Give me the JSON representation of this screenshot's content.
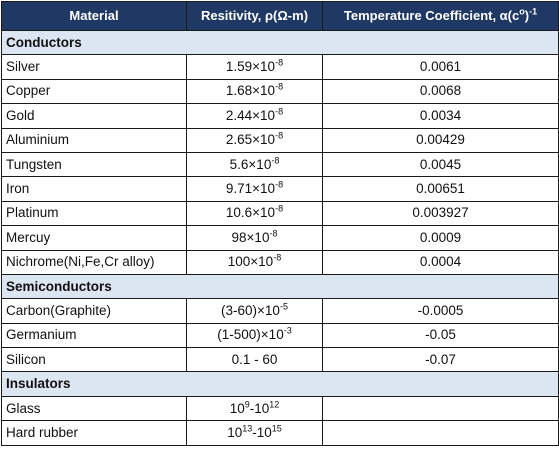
{
  "table": {
    "headers": {
      "material": "Material",
      "resistivity": "Resitivity, ρ(Ω-m)",
      "temp_coeff_base": "Temperature Coefficient, α(c",
      "temp_coeff_sup1": "o",
      "temp_coeff_mid": ")",
      "temp_coeff_sup2": "-1"
    },
    "sections": [
      {
        "title": "Conductors",
        "rows": [
          {
            "material": "Silver",
            "res_base": "1.59×10",
            "res_exp": "-8",
            "coeff": "0.0061"
          },
          {
            "material": "Copper",
            "res_base": "1.68×10",
            "res_exp": "-8",
            "coeff": "0.0068"
          },
          {
            "material": "Gold",
            "res_base": "2.44×10",
            "res_exp": "-8",
            "coeff": "0.0034"
          },
          {
            "material": "Aluminium",
            "res_base": "2.65×10",
            "res_exp": "-8",
            "coeff": "0.00429"
          },
          {
            "material": "Tungsten",
            "res_base": "5.6×10",
            "res_exp": "-8",
            "coeff": "0.0045"
          },
          {
            "material": "Iron",
            "res_base": "9.71×10",
            "res_exp": "-8",
            "coeff": "0.00651"
          },
          {
            "material": "Platinum",
            "res_base": "10.6×10",
            "res_exp": "-8",
            "coeff": "0.003927"
          },
          {
            "material": "Mercuy",
            "res_base": "98×10",
            "res_exp": "-8",
            "coeff": "0.0009"
          },
          {
            "material": "Nichrome(Ni,Fe,Cr alloy)",
            "res_base": "100×10",
            "res_exp": "-8",
            "coeff": "0.0004"
          }
        ]
      },
      {
        "title": "Semiconductors",
        "rows": [
          {
            "material": "Carbon(Graphite)",
            "res_base": "(3-60)×10",
            "res_exp": "-5",
            "coeff": "-0.0005"
          },
          {
            "material": "Germanium",
            "res_base": "(1-500)×10",
            "res_exp": "-3",
            "coeff": "-0.05"
          },
          {
            "material": "Silicon",
            "res_base": "0.1 - 60",
            "res_exp": "",
            "coeff": "-0.07"
          }
        ]
      },
      {
        "title": "Insulators",
        "rows": [
          {
            "material": "Glass",
            "res_a_base": "10",
            "res_a_exp": "9",
            "res_b_base": "10",
            "res_b_exp": "12",
            "coeff": ""
          },
          {
            "material": "Hard rubber",
            "res_a_base": "10",
            "res_a_exp": "13",
            "res_b_base": "10",
            "res_b_exp": "15",
            "coeff": ""
          }
        ]
      }
    ]
  }
}
